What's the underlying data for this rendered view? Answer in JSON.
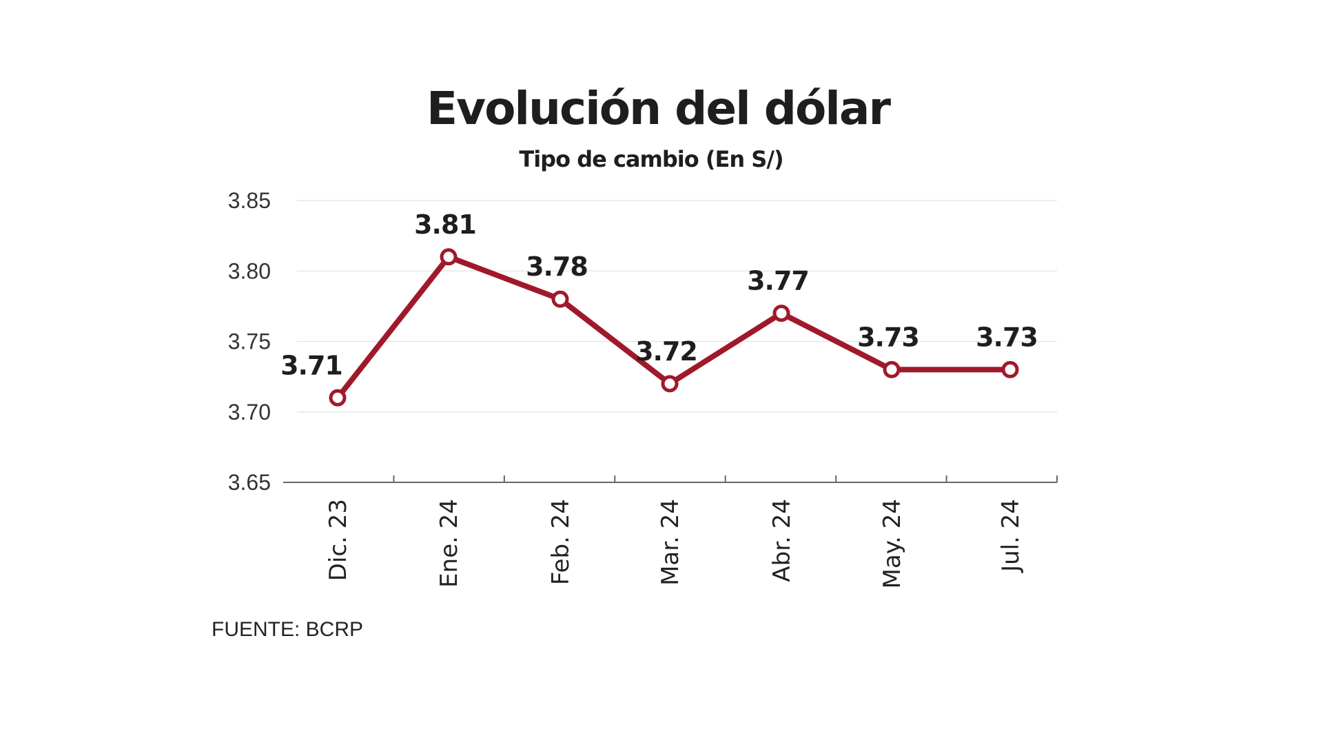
{
  "chart_data": {
    "type": "line",
    "title": "Evolución del dólar",
    "subtitle": "Tipo de cambio (En S/)",
    "categories": [
      "Dic. 23",
      "Ene. 24",
      "Feb. 24",
      "Mar. 24",
      "Abr. 24",
      "May. 24",
      "Jul. 24"
    ],
    "series": [
      {
        "values": [
          3.71,
          3.81,
          3.78,
          3.72,
          3.77,
          3.73,
          3.73
        ]
      }
    ],
    "data_labels": [
      "3.71",
      "3.81",
      "3.78",
      "3.72",
      "3.77",
      "3.73",
      "3.73"
    ],
    "yticks": [
      "3.65",
      "3.70",
      "3.75",
      "3.80",
      "3.85"
    ],
    "ylim": [
      3.65,
      3.85
    ],
    "grid": true,
    "line_color": "#a0192b",
    "source": "FUENTE: BCRP"
  }
}
